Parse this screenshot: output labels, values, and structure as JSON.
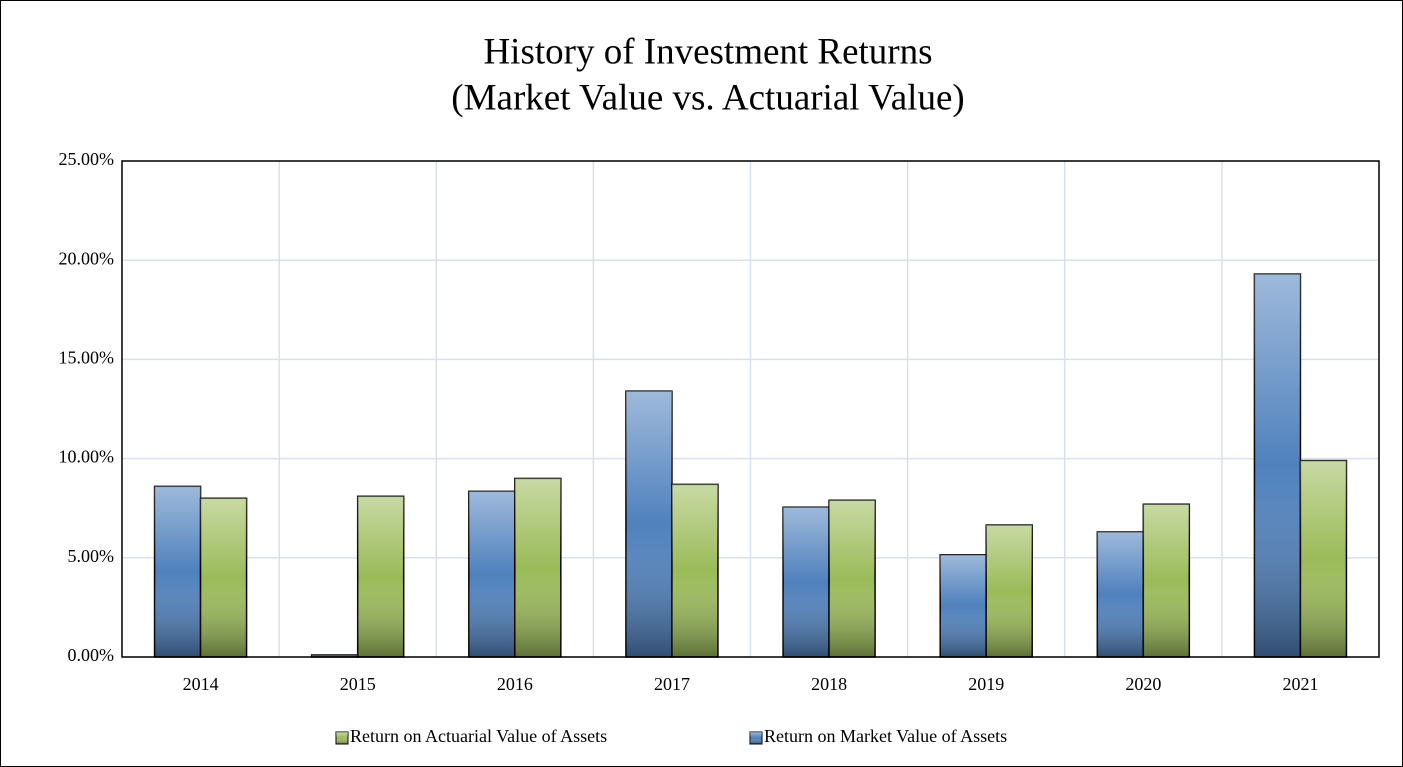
{
  "chart_data": {
    "type": "bar",
    "title": "History of Investment Returns",
    "subtitle": "(Market Value vs. Actuarial Value)",
    "categories": [
      "2014",
      "2015",
      "2016",
      "2017",
      "2018",
      "2019",
      "2020",
      "2021"
    ],
    "series": [
      {
        "name": "Return on Market Value of Assets",
        "color": "#4f81bd",
        "values": [
          8.6,
          0.1,
          8.35,
          13.4,
          7.55,
          5.15,
          6.3,
          19.3
        ]
      },
      {
        "name": "Return on Actuarial Value of Assets",
        "color": "#9bbb59",
        "values": [
          8.0,
          8.1,
          9.0,
          8.7,
          7.9,
          6.65,
          7.7,
          9.9
        ]
      }
    ],
    "ylim": [
      0,
      25
    ],
    "yticks": [
      {
        "value": 0,
        "label": "0.00%"
      },
      {
        "value": 5,
        "label": "5.00%"
      },
      {
        "value": 10,
        "label": "10.00%"
      },
      {
        "value": 15,
        "label": "15.00%"
      },
      {
        "value": 20,
        "label": "20.00%"
      },
      {
        "value": 25,
        "label": "25.00%"
      }
    ],
    "grid": true,
    "legend": "bottom"
  }
}
